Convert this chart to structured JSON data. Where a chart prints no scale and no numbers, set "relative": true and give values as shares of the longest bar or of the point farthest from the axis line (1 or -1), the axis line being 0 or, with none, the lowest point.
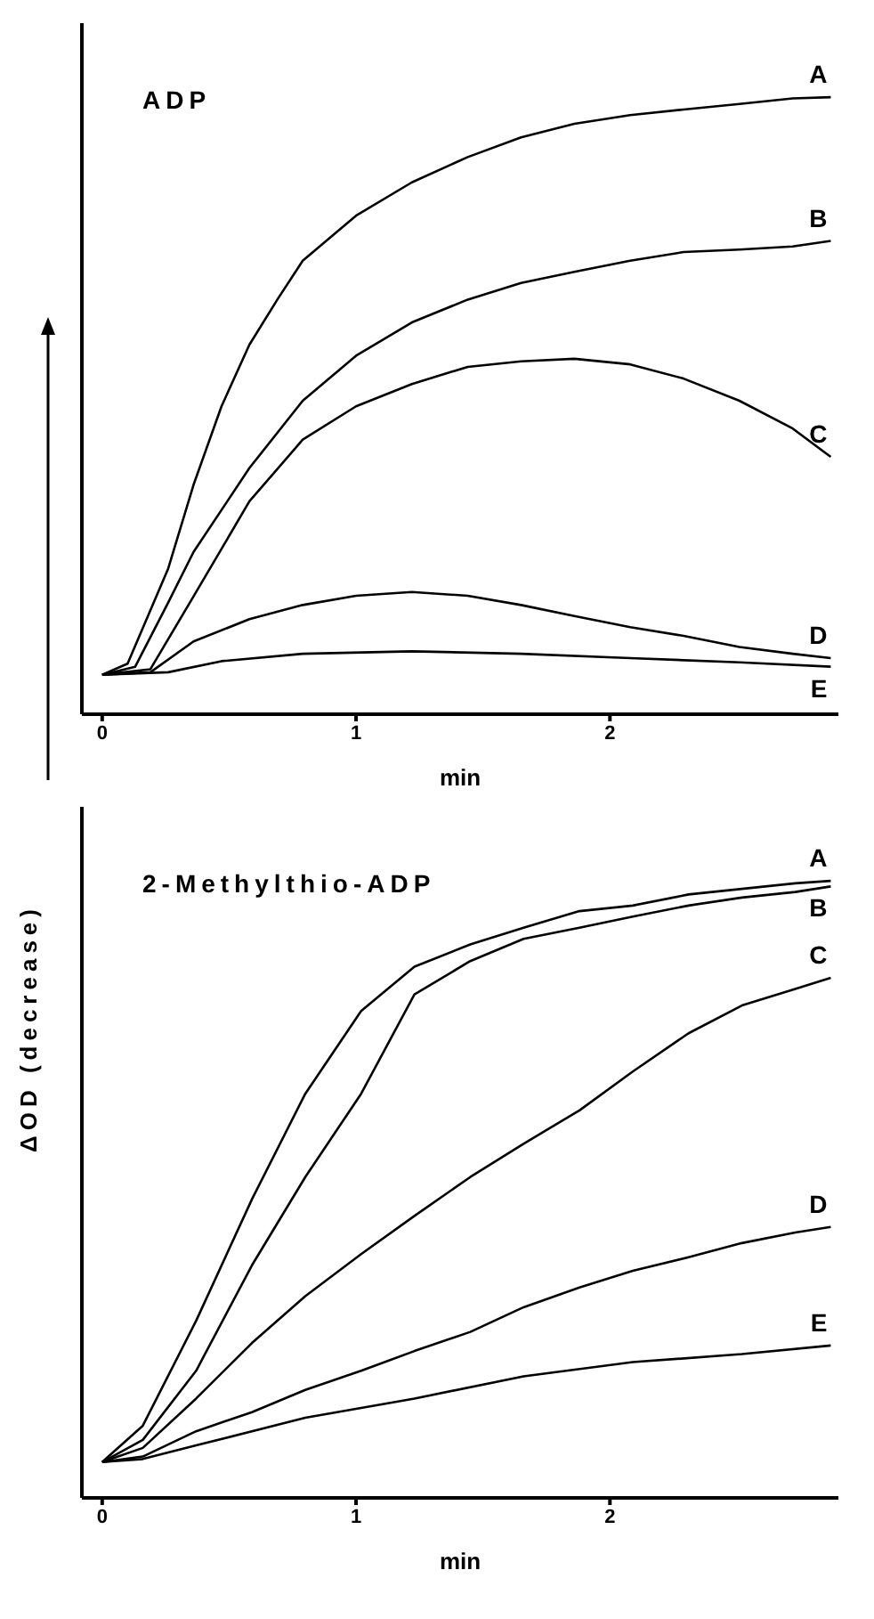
{
  "chart_data": [
    {
      "type": "line",
      "title": "ADP",
      "xlabel": "min",
      "relative": true,
      "xlim": [
        -0.08,
        2.9
      ],
      "xticks": [
        0,
        1,
        2
      ],
      "grid": false,
      "legend": false,
      "marker": "none",
      "line_style": "solid",
      "series": [
        {
          "name": "A",
          "color": "#000000",
          "x": [
            0,
            0.1,
            0.26,
            0.36,
            0.47,
            0.58,
            0.69,
            0.79,
            1.0,
            1.22,
            1.44,
            1.65,
            1.86,
            2.08,
            2.29,
            2.51,
            2.72,
            2.87
          ],
          "values": [
            0.064,
            0.082,
            0.236,
            0.372,
            0.499,
            0.599,
            0.672,
            0.735,
            0.808,
            0.862,
            0.903,
            0.935,
            0.957,
            0.971,
            0.98,
            0.989,
            0.998,
            1.0
          ]
        },
        {
          "name": "B",
          "color": "#000000",
          "x": [
            0,
            0.13,
            0.26,
            0.36,
            0.58,
            0.79,
            1.0,
            1.22,
            1.44,
            1.65,
            1.86,
            2.08,
            2.29,
            2.51,
            2.72,
            2.87
          ],
          "values": [
            0.064,
            0.077,
            0.181,
            0.263,
            0.399,
            0.508,
            0.581,
            0.635,
            0.672,
            0.699,
            0.717,
            0.735,
            0.749,
            0.753,
            0.758,
            0.767
          ]
        },
        {
          "name": "C",
          "color": "#000000",
          "x": [
            0,
            0.19,
            0.36,
            0.58,
            0.79,
            1.0,
            1.22,
            1.44,
            1.65,
            1.86,
            2.08,
            2.29,
            2.51,
            2.72,
            2.87
          ],
          "values": [
            0.064,
            0.073,
            0.191,
            0.345,
            0.445,
            0.499,
            0.535,
            0.563,
            0.572,
            0.576,
            0.567,
            0.544,
            0.508,
            0.463,
            0.417
          ]
        },
        {
          "name": "D",
          "color": "#000000",
          "x": [
            0,
            0.19,
            0.36,
            0.58,
            0.79,
            1.0,
            1.22,
            1.44,
            1.65,
            1.86,
            2.08,
            2.29,
            2.51,
            2.72,
            2.87
          ],
          "values": [
            0.064,
            0.068,
            0.118,
            0.154,
            0.177,
            0.192,
            0.198,
            0.192,
            0.177,
            0.159,
            0.141,
            0.127,
            0.109,
            0.098,
            0.091
          ]
        },
        {
          "name": "E",
          "color": "#000000",
          "x": [
            0,
            0.26,
            0.47,
            0.79,
            1.22,
            1.65,
            2.08,
            2.51,
            2.87
          ],
          "values": [
            0.064,
            0.068,
            0.086,
            0.098,
            0.102,
            0.098,
            0.091,
            0.084,
            0.077
          ]
        }
      ]
    },
    {
      "type": "line",
      "title": "2-Methylthio-ADP",
      "xlabel": "min",
      "ylabel": "ΔOD (decrease)",
      "relative": true,
      "xlim": [
        -0.08,
        2.9
      ],
      "xticks": [
        0,
        1,
        2
      ],
      "grid": false,
      "legend": false,
      "marker": "none",
      "line_style": "solid",
      "series": [
        {
          "name": "A",
          "color": "#000000",
          "x": [
            0,
            0.16,
            0.37,
            0.59,
            0.8,
            1.02,
            1.23,
            1.45,
            1.66,
            1.88,
            2.09,
            2.31,
            2.52,
            2.73,
            2.87
          ],
          "values": [
            0.058,
            0.117,
            0.287,
            0.484,
            0.655,
            0.789,
            0.861,
            0.897,
            0.924,
            0.951,
            0.96,
            0.978,
            0.987,
            0.996,
            1.0
          ]
        },
        {
          "name": "B",
          "color": "#000000",
          "x": [
            0,
            0.16,
            0.37,
            0.59,
            0.8,
            1.02,
            1.23,
            1.45,
            1.66,
            1.88,
            2.09,
            2.31,
            2.52,
            2.73,
            2.87
          ],
          "values": [
            0.058,
            0.094,
            0.206,
            0.377,
            0.52,
            0.655,
            0.816,
            0.87,
            0.906,
            0.924,
            0.942,
            0.96,
            0.973,
            0.982,
            0.991
          ]
        },
        {
          "name": "C",
          "color": "#000000",
          "x": [
            0,
            0.16,
            0.37,
            0.59,
            0.8,
            1.02,
            1.23,
            1.45,
            1.66,
            1.88,
            2.09,
            2.31,
            2.52,
            2.73,
            2.87
          ],
          "values": [
            0.058,
            0.081,
            0.161,
            0.251,
            0.327,
            0.395,
            0.457,
            0.52,
            0.574,
            0.628,
            0.691,
            0.753,
            0.798,
            0.825,
            0.843
          ]
        },
        {
          "name": "D",
          "color": "#000000",
          "x": [
            0,
            0.16,
            0.37,
            0.59,
            0.8,
            1.02,
            1.23,
            1.45,
            1.66,
            1.88,
            2.09,
            2.31,
            2.52,
            2.73,
            2.87
          ],
          "values": [
            0.058,
            0.067,
            0.108,
            0.139,
            0.175,
            0.206,
            0.238,
            0.269,
            0.309,
            0.341,
            0.368,
            0.39,
            0.413,
            0.43,
            0.439
          ]
        },
        {
          "name": "E",
          "color": "#000000",
          "x": [
            0,
            0.16,
            0.37,
            0.8,
            1.23,
            1.66,
            2.09,
            2.52,
            2.87
          ],
          "values": [
            0.058,
            0.063,
            0.085,
            0.13,
            0.161,
            0.197,
            0.22,
            0.233,
            0.247
          ]
        }
      ]
    }
  ]
}
